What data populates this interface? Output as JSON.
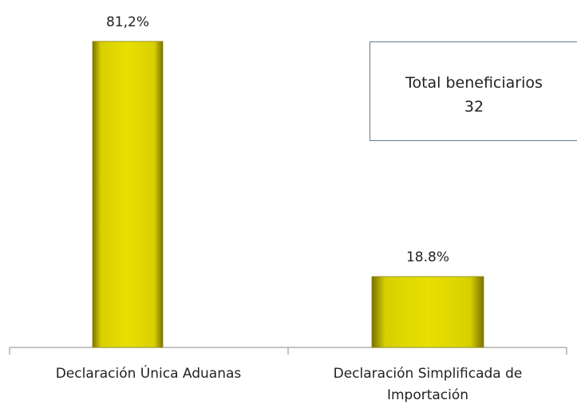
{
  "chart_data": {
    "type": "bar",
    "categories": [
      "Declaración Única Aduanas",
      "Declaración Simplificada de Importación"
    ],
    "values": [
      81.2,
      18.8
    ],
    "value_labels": [
      "81,2%",
      "18.8%"
    ],
    "color": "#e8e000",
    "annotation": {
      "label": "Total beneficiarios",
      "value": 32
    }
  }
}
